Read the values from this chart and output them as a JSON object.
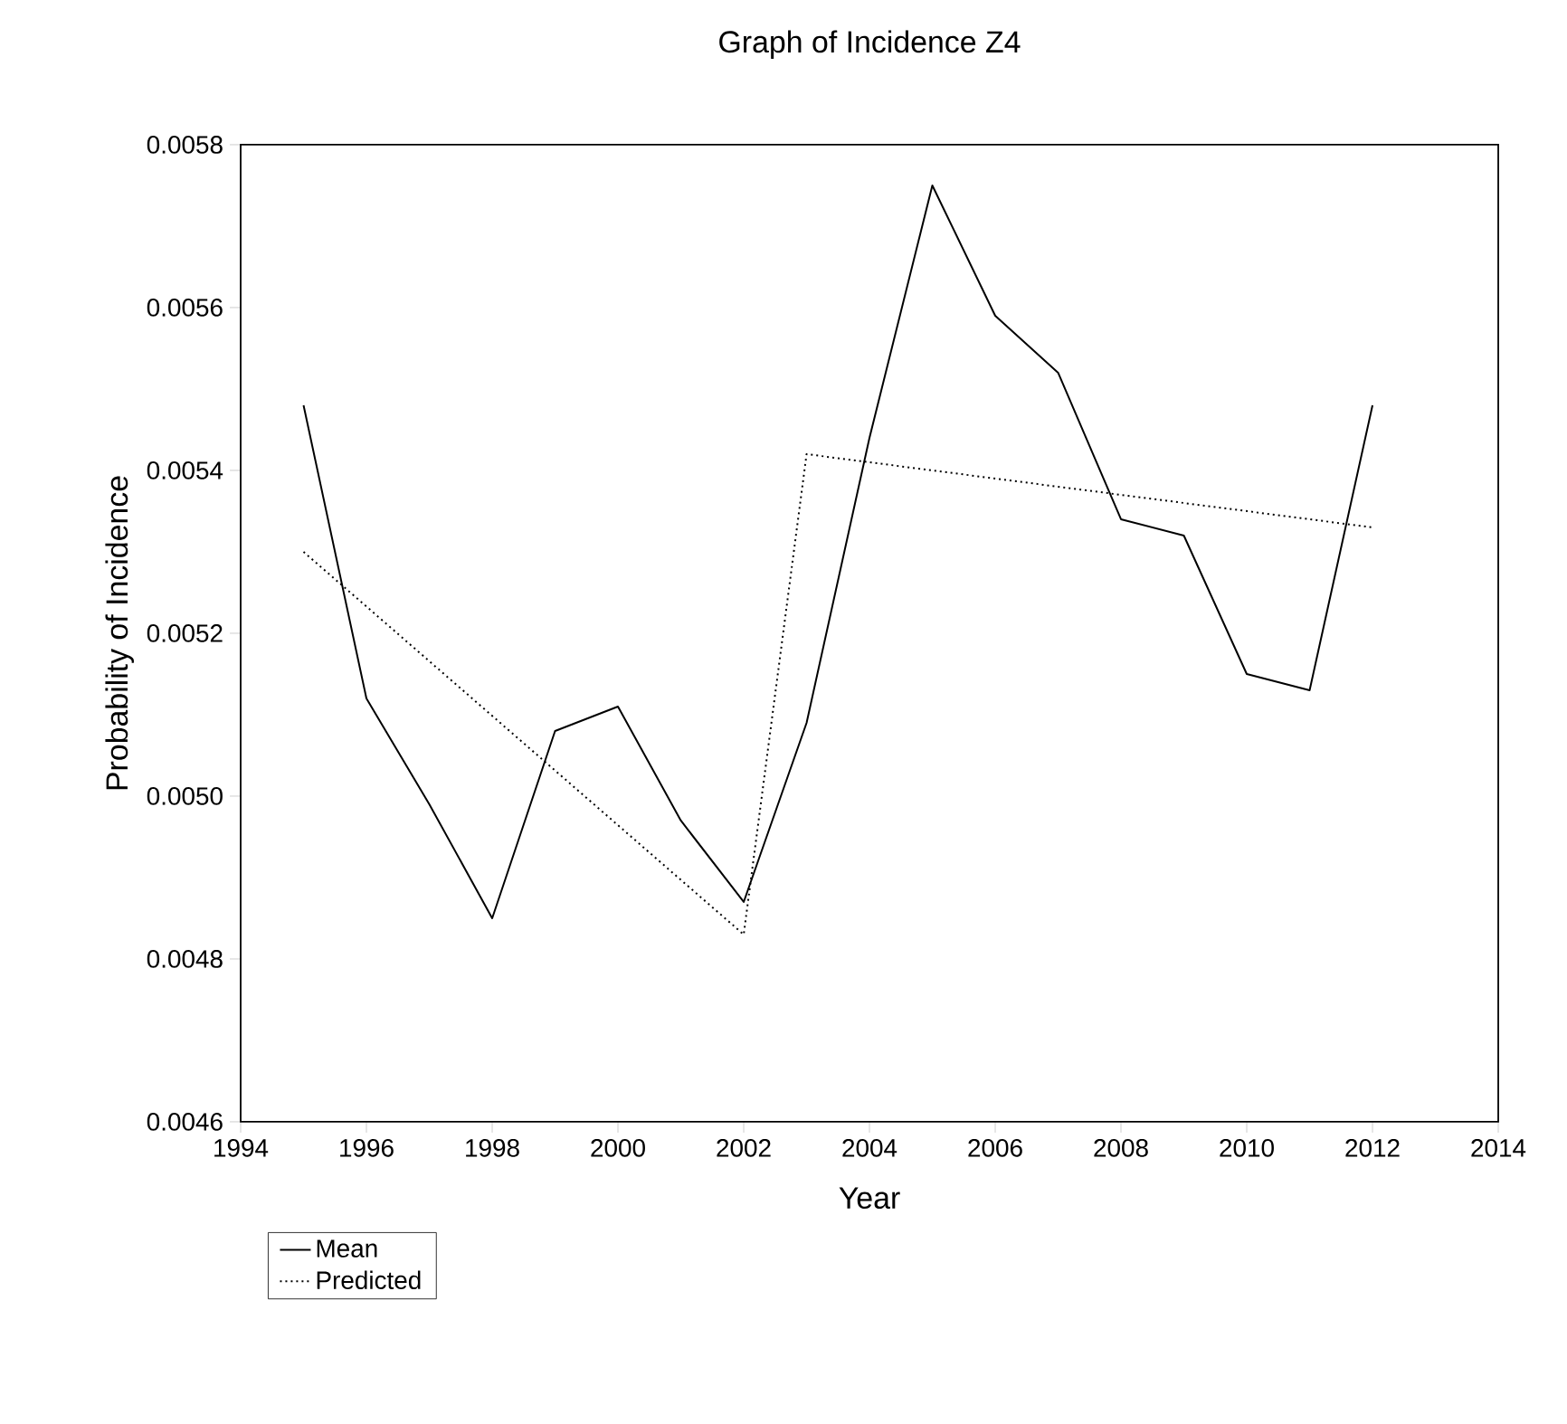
{
  "chart_data": {
    "type": "line",
    "title": "Graph of Incidence Z4",
    "xlabel": "Year",
    "ylabel": "Probability of Incidence",
    "xlim": [
      1994,
      2014
    ],
    "xticks": [
      1994,
      1996,
      1998,
      2000,
      2002,
      2004,
      2006,
      2008,
      2010,
      2012,
      2014
    ],
    "ylim": [
      0.0046,
      0.0058
    ],
    "yticks": [
      0.0046,
      0.0048,
      {
        "value": 0.005,
        "label": "0.0050"
      },
      0.0052,
      0.0054,
      0.0056,
      0.0058
    ],
    "grid": false,
    "legend": "bottom left",
    "marker": "none",
    "series": [
      {
        "name": "Mean",
        "color": "#000000",
        "line_style": "solid",
        "x": [
          1995,
          1996,
          1997,
          1998,
          1999,
          2000,
          2001,
          2002,
          2003,
          2004,
          2005,
          2006,
          2007,
          2008,
          2009,
          2010,
          2011,
          2012
        ],
        "values": [
          0.00548,
          0.00512,
          0.00499,
          0.00485,
          0.00508,
          0.00511,
          0.00497,
          0.00487,
          0.00509,
          0.00544,
          0.00575,
          0.00559,
          0.00552,
          0.00534,
          0.00532,
          0.00515,
          0.00513,
          0.00548
        ]
      },
      {
        "name": "Predicted",
        "color": "#000000",
        "line_style": "dotted",
        "x": [
          1995,
          2002,
          2003,
          2012
        ],
        "values": [
          0.0053,
          0.00483,
          0.00542,
          0.00533
        ]
      }
    ]
  }
}
